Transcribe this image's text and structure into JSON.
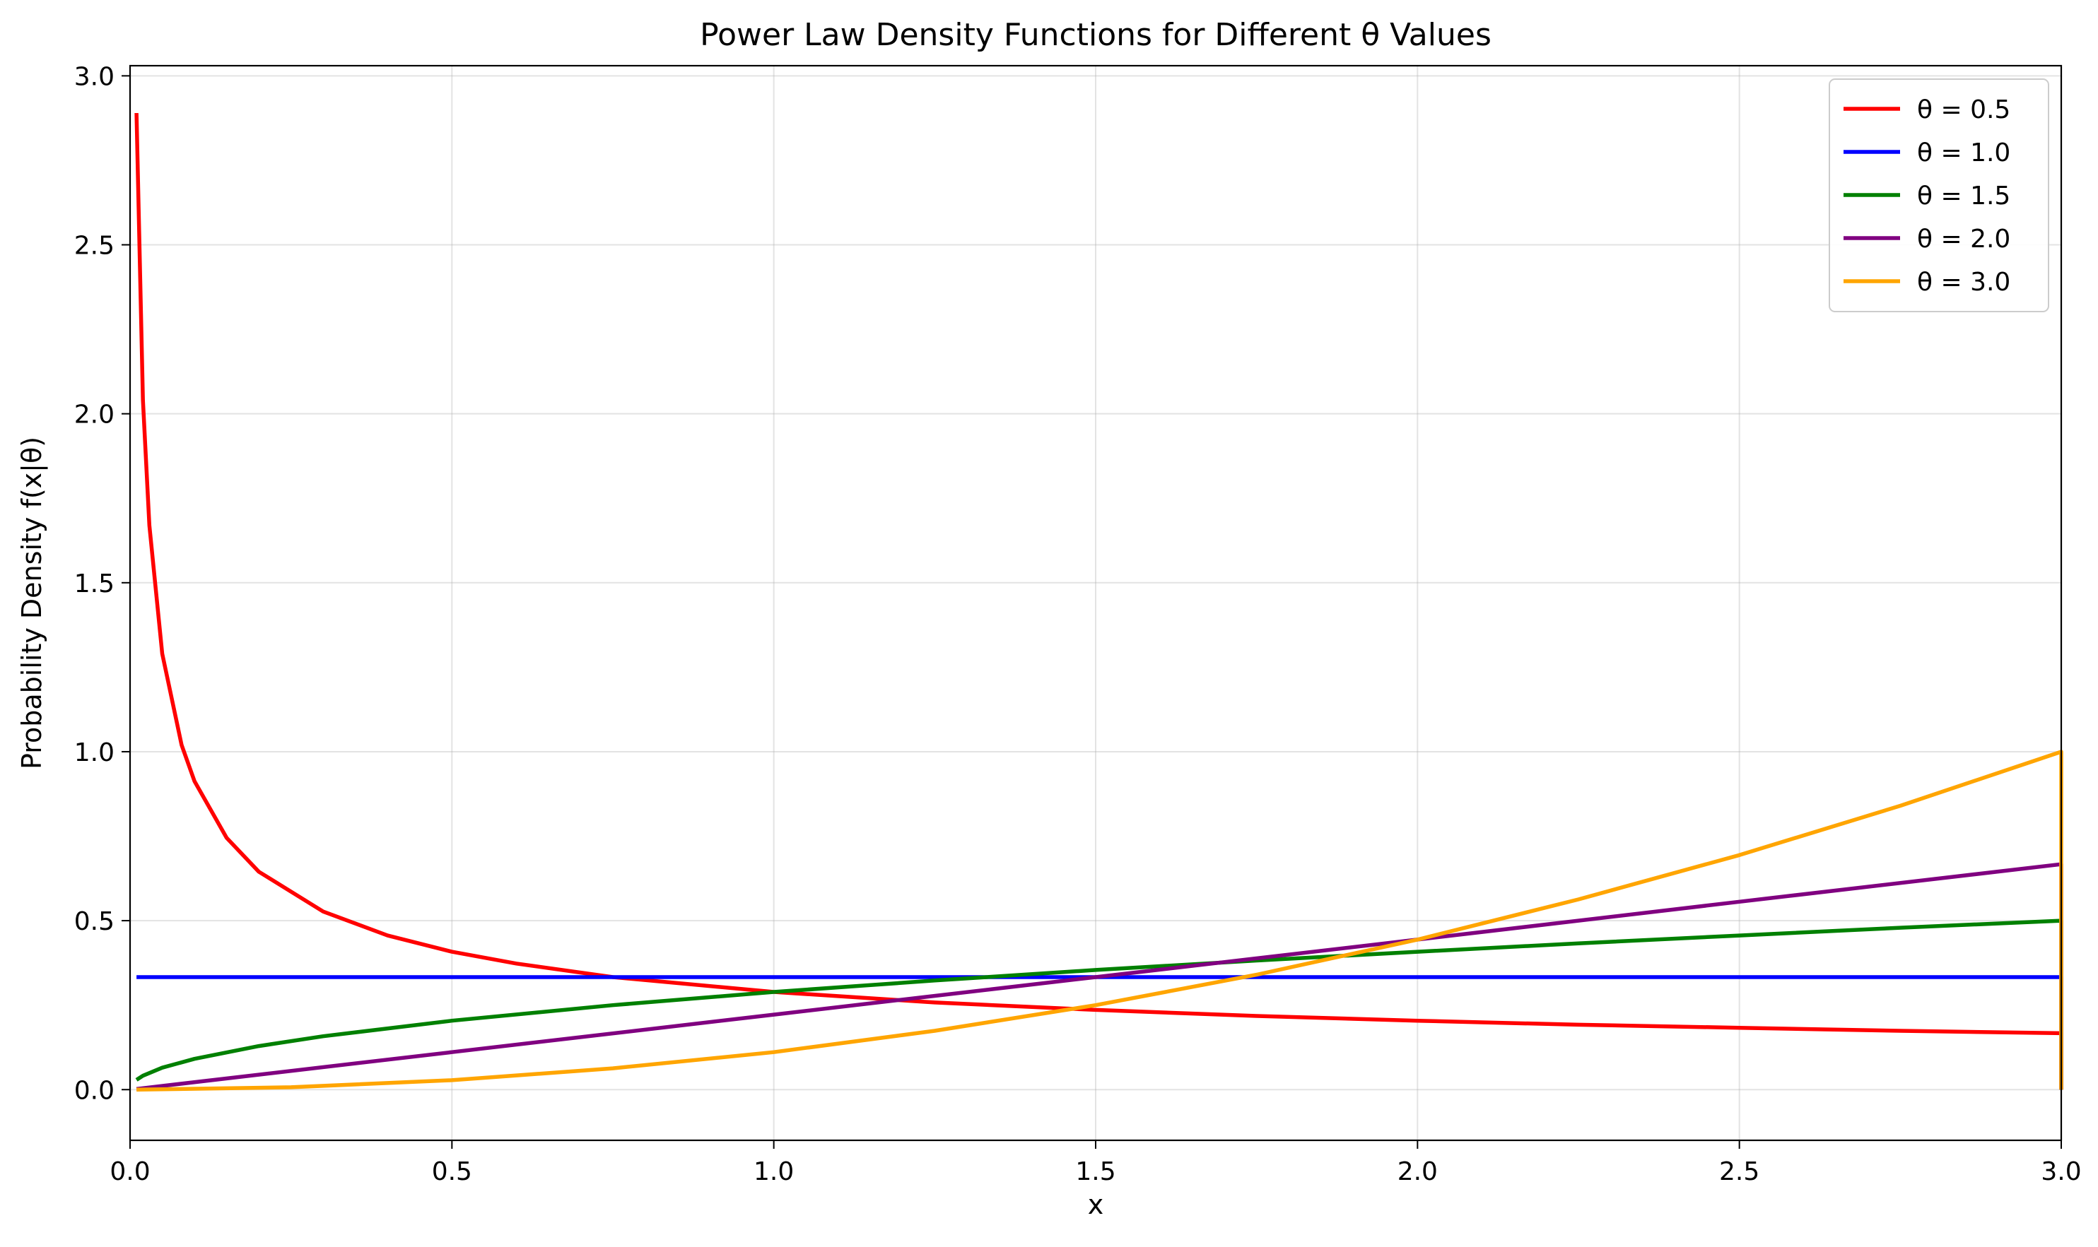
{
  "chart_data": {
    "type": "line",
    "title": "Power Law Density Functions for Different θ Values",
    "xlabel": "x",
    "ylabel": "Probability Density f(x|θ)",
    "xlim": [
      0.0,
      3.0
    ],
    "ylim": [
      -0.15,
      3.03
    ],
    "xticks": [
      "0.0",
      "0.5",
      "1.0",
      "1.5",
      "2.0",
      "2.5",
      "3.0"
    ],
    "yticks": [
      "0.0",
      "0.5",
      "1.0",
      "1.5",
      "2.0",
      "2.5",
      "3.0"
    ],
    "grid": true,
    "legend_position": "top-right",
    "series": [
      {
        "name": "θ = 0.5",
        "color": "#ff0000",
        "x": [
          0.01,
          0.02,
          0.03,
          0.05,
          0.08,
          0.1,
          0.15,
          0.2,
          0.3,
          0.4,
          0.5,
          0.6,
          0.75,
          1.0,
          1.25,
          1.5,
          1.75,
          2.0,
          2.25,
          2.5,
          2.75,
          3.0,
          3.0
        ],
        "y": [
          2.89,
          2.04,
          1.67,
          1.29,
          1.02,
          0.913,
          0.745,
          0.645,
          0.527,
          0.456,
          0.408,
          0.373,
          0.333,
          0.289,
          0.258,
          0.236,
          0.218,
          0.204,
          0.192,
          0.183,
          0.174,
          0.167,
          0.0
        ]
      },
      {
        "name": "θ = 1.0",
        "color": "#0000ff",
        "x": [
          0.01,
          3.0,
          3.0
        ],
        "y": [
          0.333,
          0.333,
          0.0
        ]
      },
      {
        "name": "θ = 1.5",
        "color": "#008000",
        "x": [
          0.01,
          0.02,
          0.05,
          0.1,
          0.2,
          0.3,
          0.5,
          0.75,
          1.0,
          1.25,
          1.5,
          1.75,
          2.0,
          2.25,
          2.5,
          2.75,
          3.0,
          3.0
        ],
        "y": [
          0.029,
          0.041,
          0.065,
          0.091,
          0.129,
          0.158,
          0.204,
          0.25,
          0.289,
          0.323,
          0.354,
          0.382,
          0.408,
          0.433,
          0.456,
          0.479,
          0.5,
          0.0
        ]
      },
      {
        "name": "θ = 2.0",
        "color": "#800080",
        "x": [
          0.01,
          0.5,
          1.0,
          1.5,
          2.0,
          2.5,
          3.0,
          3.0
        ],
        "y": [
          0.002,
          0.111,
          0.222,
          0.333,
          0.444,
          0.556,
          0.667,
          0.0
        ]
      },
      {
        "name": "θ = 3.0",
        "color": "#ffa500",
        "x": [
          0.01,
          0.25,
          0.5,
          0.75,
          1.0,
          1.25,
          1.5,
          1.75,
          2.0,
          2.25,
          2.5,
          2.75,
          3.0,
          3.0
        ],
        "y": [
          0.0,
          0.007,
          0.028,
          0.063,
          0.111,
          0.174,
          0.25,
          0.34,
          0.444,
          0.563,
          0.694,
          0.84,
          1.0,
          0.0
        ]
      }
    ]
  }
}
